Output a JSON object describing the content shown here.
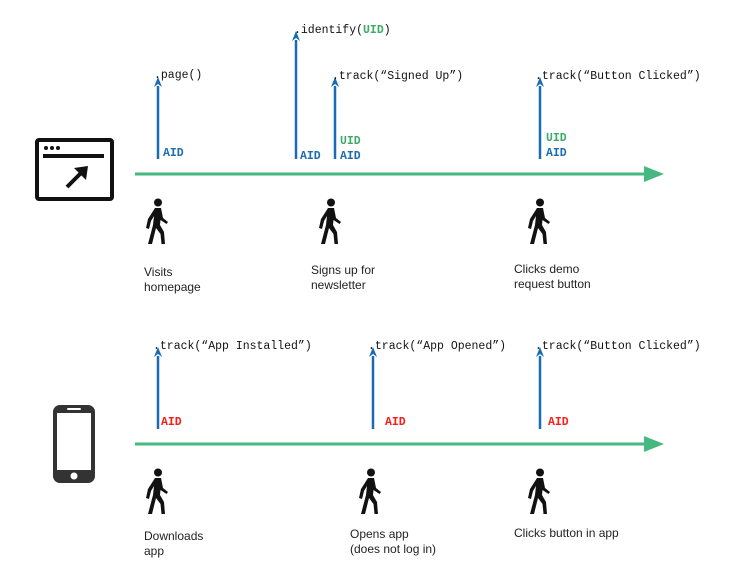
{
  "colors": {
    "timeline": "#46b982",
    "arrow": "#1a6bb5",
    "aid_web": "#1a6bb5",
    "uid": "#3daa6a",
    "aid_app": "#ff1a1a"
  },
  "web": {
    "icon": "browser-cursor-icon",
    "events": [
      {
        "call": ".page()",
        "tags": [
          "AID"
        ],
        "caption": [
          "Visits",
          "homepage"
        ]
      },
      {
        "call_prefix": ".identify(",
        "call_arg": "UID",
        "call_suffix": ")",
        "tags": [
          "AID"
        ]
      },
      {
        "call": ".track(“Signed Up”)",
        "tags": [
          "UID",
          "AID"
        ],
        "caption": [
          "Signs up for",
          "newsletter"
        ]
      },
      {
        "call": ".track(“Button Clicked”)",
        "tags": [
          "UID",
          "AID"
        ],
        "caption": [
          "Clicks demo",
          "request button"
        ]
      }
    ]
  },
  "app": {
    "icon": "smartphone-icon",
    "events": [
      {
        "call": ".track(“App Installed”)",
        "tags": [
          "AID"
        ],
        "caption": [
          "Downloads",
          "app"
        ]
      },
      {
        "call": ".track(“App Opened”)",
        "tags": [
          "AID"
        ],
        "caption": [
          "Opens app",
          "(does not log in)"
        ]
      },
      {
        "call": ".track(“Button Clicked”)",
        "tags": [
          "AID"
        ],
        "caption": [
          "Clicks button in app"
        ]
      }
    ]
  }
}
